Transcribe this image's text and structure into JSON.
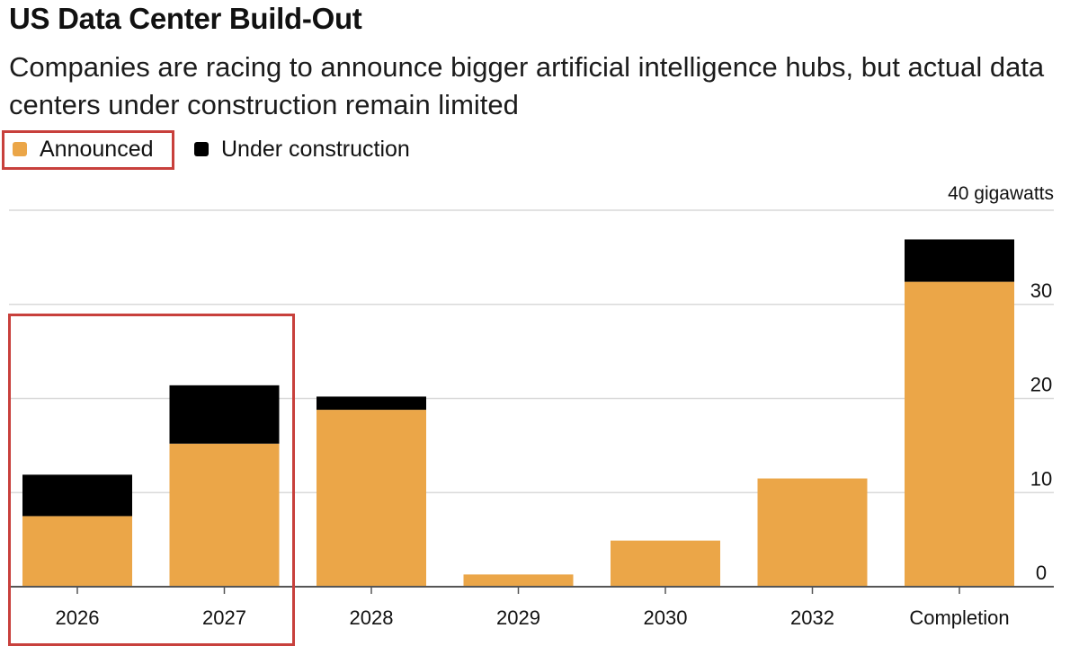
{
  "title": "US Data Center Build-Out",
  "subtitle": "Companies are racing to announce bigger artificial intelligence hubs, but actual data centers under construction remain limited",
  "chart_data": {
    "type": "bar",
    "stacked": true,
    "categories": [
      "2026",
      "2027",
      "2028",
      "2029",
      "2030",
      "2032",
      "Completion"
    ],
    "series": [
      {
        "name": "Announced",
        "color": "#eba648",
        "values": [
          7.5,
          15.2,
          18.8,
          1.3,
          4.9,
          11.5,
          32.4
        ]
      },
      {
        "name": "Under construction",
        "color": "#000000",
        "values": [
          4.4,
          6.2,
          1.4,
          0,
          0,
          0,
          4.5
        ]
      }
    ],
    "ylim": [
      0,
      40
    ],
    "yticks": [
      {
        "value": 0,
        "label": "0"
      },
      {
        "value": 10,
        "label": "10"
      },
      {
        "value": 20,
        "label": "20"
      },
      {
        "value": 30,
        "label": "30"
      },
      {
        "value": 40,
        "label": "40 gigawatts"
      }
    ],
    "ytick_position": "right",
    "grid": true,
    "legend_position": "top-left",
    "annotations": [
      {
        "type": "highlight-box",
        "color": "#c8403c",
        "target": "legend: Announced"
      },
      {
        "type": "highlight-box",
        "color": "#c8403c",
        "target": "bars: 2026, 2027"
      }
    ]
  }
}
